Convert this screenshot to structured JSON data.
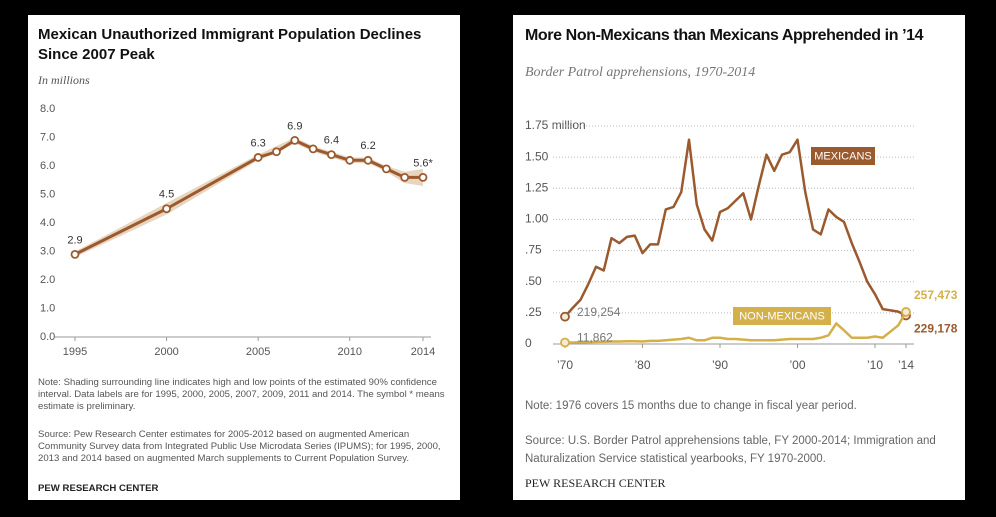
{
  "chart_data": [
    {
      "type": "line",
      "title": "Mexican Unauthorized Immigrant Population Declines Since 2007 Peak",
      "subtitle": "In millions",
      "x": [
        1995,
        2000,
        2005,
        2006,
        2007,
        2008,
        2009,
        2010,
        2011,
        2012,
        2013,
        2014
      ],
      "values": [
        2.9,
        4.5,
        6.3,
        6.5,
        6.9,
        6.6,
        6.4,
        6.2,
        6.2,
        5.9,
        5.6,
        5.6
      ],
      "value_labels": [
        "2.9",
        "4.5",
        "6.3",
        null,
        "6.9",
        null,
        "6.4",
        null,
        "6.2",
        null,
        null,
        "5.6*"
      ],
      "interval": {
        "low": [
          2.8,
          4.3,
          6.2,
          6.45,
          6.8,
          6.5,
          6.3,
          6.1,
          6.1,
          5.8,
          5.4,
          5.3
        ],
        "high": [
          3.0,
          4.7,
          6.4,
          6.7,
          7.0,
          6.7,
          6.5,
          6.3,
          6.3,
          6.0,
          5.8,
          5.9
        ]
      },
      "color": "#9b5a2e",
      "interval_color": "#e8d5c0",
      "xlim": [
        1995,
        2014
      ],
      "xticks": [
        1995,
        2000,
        2005,
        2010,
        2014
      ],
      "ylim": [
        0,
        8
      ],
      "yticks": [
        {
          "value": 0,
          "label": "0.0"
        },
        {
          "value": 1,
          "label": "1.0"
        },
        {
          "value": 2,
          "label": "2.0"
        },
        {
          "value": 3,
          "label": "3.0"
        },
        {
          "value": 4,
          "label": "4.0"
        },
        {
          "value": 5,
          "label": "5.0"
        },
        {
          "value": 6,
          "label": "6.0"
        },
        {
          "value": 7,
          "label": "7.0"
        },
        {
          "value": 8,
          "label": "8.0"
        }
      ],
      "grid": false,
      "note": "Note: Shading surrounding line indicates high and low points of the estimated 90% confidence interval. Data labels are for 1995, 2000, 2005, 2007, 2009, 2011 and 2014. The symbol * means estimate is preliminary.",
      "source": "Source: Pew Research Center estimates for 2005-2012 based on augmented American Community Survey data from Integrated Public Use Microdata Series (IPUMS); for 1995, 2000, 2013 and 2014 based on augmented March supplements to Current Population Survey.",
      "footer": "PEW RESEARCH CENTER"
    },
    {
      "type": "line",
      "title": "More Non-Mexicans than Mexicans Apprehended in ’14",
      "subtitle": "Border Patrol apprehensions, 1970-2014",
      "x": [
        1970,
        1971,
        1972,
        1973,
        1974,
        1975,
        1976,
        1977,
        1978,
        1979,
        1980,
        1981,
        1982,
        1983,
        1984,
        1985,
        1986,
        1987,
        1988,
        1989,
        1990,
        1991,
        1992,
        1993,
        1994,
        1995,
        1996,
        1997,
        1998,
        1999,
        2000,
        2001,
        2002,
        2003,
        2004,
        2005,
        2006,
        2007,
        2008,
        2009,
        2010,
        2011,
        2012,
        2013,
        2014
      ],
      "series": [
        {
          "name": "MEXICANS",
          "color": "#9b5a2e",
          "values": [
            0.219254,
            0.29,
            0.355,
            0.48,
            0.62,
            0.59,
            0.85,
            0.81,
            0.86,
            0.87,
            0.73,
            0.8,
            0.8,
            1.08,
            1.1,
            1.22,
            1.64,
            1.12,
            0.92,
            0.83,
            1.06,
            1.09,
            1.15,
            1.21,
            1.0,
            1.27,
            1.52,
            1.39,
            1.52,
            1.54,
            1.64,
            1.22,
            0.92,
            0.88,
            1.08,
            1.02,
            0.98,
            0.81,
            0.66,
            0.5,
            0.4,
            0.28,
            0.27,
            0.26,
            0.229178
          ],
          "value_labels": [
            "219,254",
            null,
            null,
            null,
            null,
            null,
            null,
            null,
            null,
            null,
            null,
            null,
            null,
            null,
            null,
            null,
            null,
            null,
            null,
            null,
            null,
            null,
            null,
            null,
            null,
            null,
            null,
            null,
            null,
            null,
            null,
            null,
            null,
            null,
            null,
            null,
            null,
            null,
            null,
            null,
            null,
            null,
            null,
            null,
            "229,178"
          ]
        },
        {
          "name": "NON-MEXICANS",
          "color": "#d4b04a",
          "values": [
            0.011862,
            0.012,
            0.014,
            0.015,
            0.017,
            0.018,
            0.02,
            0.02,
            0.022,
            0.022,
            0.02,
            0.025,
            0.025,
            0.03,
            0.035,
            0.04,
            0.05,
            0.03,
            0.03,
            0.05,
            0.05,
            0.04,
            0.04,
            0.035,
            0.03,
            0.03,
            0.03,
            0.03,
            0.035,
            0.04,
            0.04,
            0.04,
            0.04,
            0.05,
            0.07,
            0.165,
            0.11,
            0.05,
            0.05,
            0.05,
            0.06,
            0.05,
            0.1,
            0.15,
            0.257473
          ],
          "value_labels": [
            "11,862",
            null,
            null,
            null,
            null,
            null,
            null,
            null,
            null,
            null,
            null,
            null,
            null,
            null,
            null,
            null,
            null,
            null,
            null,
            null,
            null,
            null,
            null,
            null,
            null,
            null,
            null,
            null,
            null,
            null,
            null,
            null,
            null,
            null,
            null,
            null,
            null,
            null,
            null,
            null,
            null,
            null,
            null,
            null,
            "257,473"
          ]
        }
      ],
      "xlim": [
        1970,
        2014
      ],
      "xticks": [
        {
          "value": 1970,
          "label": "’70"
        },
        {
          "value": 1980,
          "label": "’80"
        },
        {
          "value": 1990,
          "label": "’90"
        },
        {
          "value": 2000,
          "label": "’00"
        },
        {
          "value": 2010,
          "label": "’10"
        },
        {
          "value": 2014,
          "label": "’14"
        }
      ],
      "ylim": [
        0,
        1.75
      ],
      "yticks": [
        0,
        {
          "value": 0.25,
          "label": ".25"
        },
        {
          "value": 0.5,
          "label": ".50"
        },
        {
          "value": 0.75,
          "label": ".75"
        },
        {
          "value": 1,
          "label": "1.00"
        },
        {
          "value": 1.25,
          "label": "1.25"
        },
        {
          "value": 1.5,
          "label": "1.50"
        },
        {
          "value": 1.75,
          "label": "1.75 million"
        }
      ],
      "grid": true,
      "note": "Note: 1976 covers 15 months due to change in fiscal year period.",
      "source": "Source: U.S. Border Patrol apprehensions table, FY 2000-2014; Immigration and Naturalization Service statistical yearbooks, FY 1970-2000.",
      "footer": "PEW RESEARCH CENTER"
    }
  ]
}
